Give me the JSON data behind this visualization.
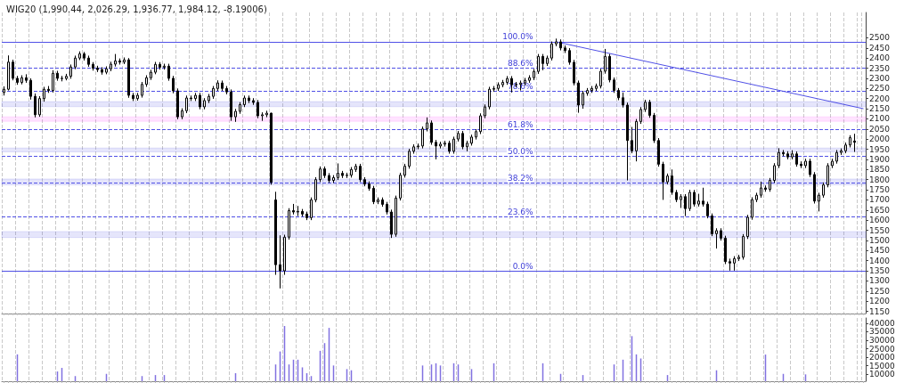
{
  "chart_data": [
    {
      "type": "candlestick",
      "title": "WIG20 (1,990.44, 2,026.29, 1,936.77, 1,984.12, -8.19006)",
      "categories": [
        null,
        null,
        null,
        null,
        null,
        null,
        null,
        null,
        null,
        null,
        null,
        null,
        null,
        null,
        null,
        null,
        null,
        null,
        null,
        null,
        null,
        null,
        null,
        null,
        null,
        null,
        null,
        null,
        null,
        null,
        null,
        null,
        null,
        null,
        null,
        null,
        null,
        null,
        null,
        null,
        null,
        null,
        null,
        null,
        null,
        null,
        null,
        null,
        null,
        null,
        null,
        null,
        null,
        null,
        null,
        null,
        null,
        null,
        null,
        null,
        null,
        null,
        null,
        null,
        null,
        null,
        null,
        null,
        null,
        null,
        null,
        null,
        null,
        null,
        null,
        null,
        null,
        null,
        null,
        null,
        null,
        null,
        null,
        null,
        null,
        null,
        null,
        null,
        null,
        null,
        null,
        null,
        null,
        null,
        null,
        null,
        null,
        null,
        null,
        null,
        null,
        null,
        null,
        null,
        null,
        null,
        null,
        null,
        null,
        null,
        null,
        null,
        null,
        null,
        null,
        null,
        null,
        null,
        null,
        null,
        null,
        null,
        null,
        null,
        null,
        null,
        null,
        null,
        null,
        null,
        null,
        null,
        null,
        null,
        null,
        null,
        null,
        null,
        null,
        null,
        null,
        null,
        null,
        null,
        null,
        null,
        null,
        null,
        null,
        null,
        null,
        null,
        null,
        null,
        null,
        null,
        null,
        null,
        null,
        null,
        null,
        null,
        null,
        null,
        null,
        null,
        null,
        null,
        null,
        null,
        null,
        null,
        null,
        null,
        null,
        null,
        null,
        null,
        null,
        null,
        null,
        null,
        null,
        null,
        null,
        null,
        null,
        null,
        null,
        null,
        null,
        null,
        null,
        null
      ],
      "ohlc": [
        [
          2230,
          2260,
          2215,
          2246
        ],
        [
          2246,
          2413,
          2240,
          2380
        ],
        [
          2380,
          2392,
          2290,
          2300
        ],
        [
          2300,
          2312,
          2268,
          2280
        ],
        [
          2280,
          2315,
          2270,
          2303
        ],
        [
          2303,
          2320,
          2278,
          2290
        ],
        [
          2290,
          2300,
          2195,
          2211
        ],
        [
          2211,
          2225,
          2107,
          2120
        ],
        [
          2120,
          2212,
          2110,
          2200
        ],
        [
          2200,
          2258,
          2185,
          2246
        ],
        [
          2246,
          2262,
          2228,
          2240
        ],
        [
          2240,
          2340,
          2230,
          2325
        ],
        [
          2325,
          2337,
          2288,
          2300
        ],
        [
          2300,
          2312,
          2285,
          2299
        ],
        [
          2299,
          2322,
          2290,
          2310
        ],
        [
          2310,
          2368,
          2298,
          2356
        ],
        [
          2356,
          2412,
          2345,
          2400
        ],
        [
          2400,
          2433,
          2390,
          2421
        ],
        [
          2421,
          2430,
          2388,
          2400
        ],
        [
          2400,
          2412,
          2357,
          2369
        ],
        [
          2369,
          2380,
          2338,
          2350
        ],
        [
          2350,
          2362,
          2331,
          2343
        ],
        [
          2343,
          2355,
          2318,
          2330
        ],
        [
          2330,
          2359,
          2320,
          2347
        ],
        [
          2347,
          2382,
          2335,
          2370
        ],
        [
          2370,
          2420,
          2358,
          2386
        ],
        [
          2386,
          2398,
          2368,
          2380
        ],
        [
          2380,
          2403,
          2370,
          2391
        ],
        [
          2391,
          2400,
          2204,
          2216
        ],
        [
          2216,
          2228,
          2188,
          2200
        ],
        [
          2200,
          2228,
          2190,
          2216
        ],
        [
          2216,
          2282,
          2205,
          2270
        ],
        [
          2270,
          2315,
          2258,
          2303
        ],
        [
          2303,
          2342,
          2292,
          2330
        ],
        [
          2330,
          2381,
          2320,
          2369
        ],
        [
          2369,
          2380,
          2343,
          2355
        ],
        [
          2355,
          2372,
          2343,
          2360
        ],
        [
          2360,
          2372,
          2288,
          2300
        ],
        [
          2300,
          2312,
          2226,
          2238
        ],
        [
          2238,
          2250,
          2098,
          2110
        ],
        [
          2110,
          2152,
          2098,
          2140
        ],
        [
          2140,
          2215,
          2128,
          2203
        ],
        [
          2203,
          2215,
          2188,
          2200
        ],
        [
          2200,
          2228,
          2188,
          2216
        ],
        [
          2216,
          2228,
          2147,
          2159
        ],
        [
          2159,
          2202,
          2147,
          2190
        ],
        [
          2190,
          2223,
          2178,
          2211
        ],
        [
          2211,
          2262,
          2199,
          2250
        ],
        [
          2250,
          2290,
          2238,
          2277
        ],
        [
          2277,
          2289,
          2238,
          2250
        ],
        [
          2250,
          2262,
          2221,
          2233
        ],
        [
          2233,
          2245,
          2090,
          2110
        ],
        [
          2110,
          2149,
          2085,
          2137
        ],
        [
          2137,
          2182,
          2125,
          2170
        ],
        [
          2170,
          2215,
          2158,
          2203
        ],
        [
          2203,
          2215,
          2178,
          2190
        ],
        [
          2190,
          2202,
          2169,
          2181
        ],
        [
          2181,
          2193,
          2103,
          2115
        ],
        [
          2115,
          2132,
          2090,
          2120
        ],
        [
          2120,
          2140,
          2108,
          2128
        ],
        [
          2128,
          2130,
          1775,
          1787
        ],
        [
          1700,
          1740,
          1330,
          1380
        ],
        [
          1380,
          1525,
          1263,
          1350
        ],
        [
          1350,
          1528,
          1330,
          1516
        ],
        [
          1516,
          1659,
          1504,
          1647
        ],
        [
          1647,
          1680,
          1628,
          1640
        ],
        [
          1640,
          1670,
          1620,
          1643
        ],
        [
          1643,
          1655,
          1618,
          1630
        ],
        [
          1630,
          1642,
          1600,
          1612
        ],
        [
          1612,
          1712,
          1600,
          1700
        ],
        [
          1700,
          1812,
          1688,
          1800
        ],
        [
          1800,
          1865,
          1788,
          1853
        ],
        [
          1853,
          1865,
          1808,
          1820
        ],
        [
          1820,
          1832,
          1784,
          1796
        ],
        [
          1796,
          1822,
          1784,
          1810
        ],
        [
          1810,
          1880,
          1798,
          1831
        ],
        [
          1831,
          1843,
          1808,
          1820
        ],
        [
          1820,
          1834,
          1808,
          1822
        ],
        [
          1822,
          1862,
          1810,
          1850
        ],
        [
          1850,
          1878,
          1838,
          1866
        ],
        [
          1866,
          1878,
          1788,
          1800
        ],
        [
          1800,
          1812,
          1767,
          1779
        ],
        [
          1779,
          1791,
          1745,
          1757
        ],
        [
          1757,
          1769,
          1679,
          1691
        ],
        [
          1691,
          1712,
          1679,
          1700
        ],
        [
          1700,
          1712,
          1666,
          1678
        ],
        [
          1678,
          1690,
          1628,
          1640
        ],
        [
          1640,
          1652,
          1512,
          1530
        ],
        [
          1530,
          1721,
          1518,
          1709
        ],
        [
          1709,
          1834,
          1697,
          1822
        ],
        [
          1822,
          1878,
          1810,
          1866
        ],
        [
          1866,
          1952,
          1854,
          1940
        ],
        [
          1940,
          1974,
          1928,
          1962
        ],
        [
          1962,
          1978,
          1950,
          1966
        ],
        [
          1966,
          2062,
          1954,
          2050
        ],
        [
          2050,
          2107,
          2038,
          2080
        ],
        [
          2080,
          2092,
          1972,
          1984
        ],
        [
          1984,
          1996,
          1900,
          1966
        ],
        [
          1966,
          1987,
          1954,
          1975
        ],
        [
          1975,
          1992,
          1963,
          1980
        ],
        [
          1980,
          1992,
          1928,
          1940
        ],
        [
          1940,
          2012,
          1928,
          2000
        ],
        [
          2000,
          2040,
          1988,
          2028
        ],
        [
          2028,
          2040,
          1950,
          1962
        ],
        [
          1962,
          1992,
          1940,
          1980
        ],
        [
          1980,
          2022,
          1968,
          2010
        ],
        [
          2010,
          2049,
          1998,
          2037
        ],
        [
          2037,
          2127,
          2025,
          2115
        ],
        [
          2115,
          2171,
          2103,
          2159
        ],
        [
          2159,
          2258,
          2147,
          2246
        ],
        [
          2246,
          2262,
          2234,
          2250
        ],
        [
          2250,
          2280,
          2238,
          2268
        ],
        [
          2268,
          2292,
          2256,
          2280
        ],
        [
          2280,
          2311,
          2268,
          2299
        ],
        [
          2299,
          2311,
          2230,
          2268
        ],
        [
          2268,
          2282,
          2256,
          2270
        ],
        [
          2270,
          2289,
          2240,
          2277
        ],
        [
          2277,
          2302,
          2265,
          2290
        ],
        [
          2290,
          2315,
          2278,
          2303
        ],
        [
          2303,
          2346,
          2291,
          2334
        ],
        [
          2334,
          2420,
          2322,
          2408
        ],
        [
          2408,
          2420,
          2340,
          2373
        ],
        [
          2373,
          2412,
          2361,
          2400
        ],
        [
          2400,
          2482,
          2388,
          2470
        ],
        [
          2470,
          2496,
          2458,
          2480
        ],
        [
          2480,
          2492,
          2438,
          2450
        ],
        [
          2450,
          2462,
          2425,
          2437
        ],
        [
          2437,
          2449,
          2367,
          2379
        ],
        [
          2379,
          2391,
          2265,
          2277
        ],
        [
          2277,
          2289,
          2130,
          2168
        ],
        [
          2168,
          2238,
          2150,
          2226
        ],
        [
          2226,
          2252,
          2214,
          2240
        ],
        [
          2240,
          2262,
          2228,
          2250
        ],
        [
          2250,
          2274,
          2238,
          2262
        ],
        [
          2262,
          2347,
          2250,
          2335
        ],
        [
          2335,
          2445,
          2323,
          2408
        ],
        [
          2408,
          2420,
          2280,
          2292
        ],
        [
          2292,
          2304,
          2228,
          2240
        ],
        [
          2240,
          2252,
          2192,
          2204
        ],
        [
          2204,
          2230,
          2156,
          2168
        ],
        [
          2168,
          2180,
          1796,
          1993
        ],
        [
          1993,
          2060,
          1930,
          1942
        ],
        [
          1942,
          2099,
          1890,
          2087
        ],
        [
          2087,
          2158,
          2075,
          2146
        ],
        [
          2146,
          2194,
          2134,
          2182
        ],
        [
          2182,
          2194,
          2105,
          2117
        ],
        [
          2117,
          2129,
          1981,
          1993
        ],
        [
          1993,
          2005,
          1864,
          1876
        ],
        [
          1876,
          1888,
          1700,
          1789
        ],
        [
          1789,
          1830,
          1777,
          1818
        ],
        [
          1818,
          1850,
          1725,
          1737
        ],
        [
          1737,
          1749,
          1689,
          1701
        ],
        [
          1701,
          1728,
          1660,
          1716
        ],
        [
          1716,
          1728,
          1620,
          1657
        ],
        [
          1657,
          1750,
          1645,
          1737
        ],
        [
          1737,
          1749,
          1667,
          1679
        ],
        [
          1679,
          1730,
          1667,
          1694
        ],
        [
          1694,
          1760,
          1667,
          1679
        ],
        [
          1679,
          1691,
          1609,
          1621
        ],
        [
          1621,
          1633,
          1521,
          1533
        ],
        [
          1533,
          1560,
          1460,
          1548
        ],
        [
          1548,
          1560,
          1499,
          1511
        ],
        [
          1511,
          1523,
          1383,
          1395
        ],
        [
          1395,
          1410,
          1351,
          1388
        ],
        [
          1388,
          1422,
          1351,
          1410
        ],
        [
          1410,
          1429,
          1398,
          1417
        ],
        [
          1417,
          1531,
          1405,
          1519
        ],
        [
          1519,
          1626,
          1507,
          1614
        ],
        [
          1614,
          1713,
          1602,
          1701
        ],
        [
          1701,
          1735,
          1689,
          1723
        ],
        [
          1723,
          1790,
          1711,
          1759
        ],
        [
          1759,
          1771,
          1740,
          1752
        ],
        [
          1752,
          1808,
          1740,
          1796
        ],
        [
          1796,
          1881,
          1784,
          1869
        ],
        [
          1869,
          1955,
          1857,
          1934
        ],
        [
          1934,
          1946,
          1915,
          1927
        ],
        [
          1927,
          1940,
          1900,
          1912
        ],
        [
          1912,
          1945,
          1900,
          1927
        ],
        [
          1927,
          1939,
          1864,
          1876
        ],
        [
          1876,
          1890,
          1857,
          1869
        ],
        [
          1869,
          1903,
          1857,
          1891
        ],
        [
          1891,
          1903,
          1813,
          1825
        ],
        [
          1825,
          1837,
          1682,
          1694
        ],
        [
          1694,
          1735,
          1643,
          1723
        ],
        [
          1723,
          1786,
          1711,
          1774
        ],
        [
          1774,
          1881,
          1762,
          1869
        ],
        [
          1869,
          1903,
          1857,
          1891
        ],
        [
          1891,
          1946,
          1879,
          1934
        ],
        [
          1934,
          1954,
          1922,
          1942
        ],
        [
          1942,
          1983,
          1930,
          1971
        ],
        [
          1971,
          2019,
          1959,
          2007
        ],
        [
          1990.44,
          2026.29,
          1936.77,
          1984.12
        ],
        null,
        null
      ],
      "series": [
        {
          "type": "line",
          "color": "#5050e6",
          "values": [
            null,
            null,
            null,
            null,
            null,
            null,
            null,
            null,
            null,
            null,
            null,
            null,
            null,
            null,
            null,
            null,
            null,
            null,
            null,
            null,
            null,
            null,
            null,
            null,
            null,
            null,
            null,
            null,
            null,
            null,
            null,
            null,
            null,
            null,
            null,
            null,
            null,
            null,
            null,
            null,
            null,
            null,
            null,
            null,
            null,
            null,
            null,
            null,
            null,
            null,
            null,
            null,
            null,
            null,
            null,
            null,
            null,
            null,
            null,
            null,
            null,
            null,
            null,
            null,
            null,
            null,
            null,
            null,
            null,
            null,
            null,
            null,
            null,
            null,
            null,
            null,
            null,
            null,
            null,
            null,
            null,
            null,
            null,
            null,
            null,
            null,
            null,
            null,
            null,
            null,
            null,
            null,
            null,
            null,
            null,
            null,
            null,
            null,
            null,
            null,
            null,
            null,
            null,
            null,
            null,
            null,
            null,
            null,
            null,
            null,
            null,
            null,
            null,
            null,
            null,
            null,
            null,
            null,
            null,
            null,
            null,
            null,
            null,
            null,
            2480,
            null,
            null,
            null,
            null,
            null,
            null,
            null,
            null,
            null,
            null,
            null,
            null,
            null,
            null,
            null,
            null,
            null,
            null,
            null,
            null,
            null,
            null,
            null,
            null,
            null,
            null,
            null,
            null,
            null,
            null,
            null,
            null,
            null,
            null,
            null,
            null,
            null,
            null,
            null,
            null,
            null,
            null,
            null,
            null,
            null,
            null,
            null,
            null,
            null,
            null,
            null,
            null,
            null,
            null,
            null,
            null,
            null,
            null,
            null,
            null,
            null,
            null,
            null,
            null,
            null,
            null,
            null,
            null,
            2150
          ]
        }
      ],
      "ylim": [
        1140,
        2625
      ],
      "yticks": [
        1150,
        1200,
        1250,
        1300,
        1350,
        1400,
        1450,
        1500,
        1550,
        1600,
        1650,
        1700,
        1750,
        1800,
        1850,
        1900,
        1950,
        2000,
        2050,
        2100,
        2150,
        2200,
        2250,
        2300,
        2350,
        2400,
        2450,
        2500
      ],
      "ref_lines": [
        {
          "axis": "y",
          "value": 2480,
          "color": "#5050e6",
          "line_style": "solid"
        },
        {
          "axis": "y",
          "value": 2352,
          "color": "#5050e6",
          "line_style": "dashed"
        },
        {
          "axis": "y",
          "value": 2238,
          "color": "#5050e6",
          "line_style": "dashed"
        },
        {
          "axis": "y",
          "value": 2048,
          "color": "#5050e6",
          "line_style": "dashed"
        },
        {
          "axis": "y",
          "value": 1915,
          "color": "#5050e6",
          "line_style": "dashed"
        },
        {
          "axis": "y",
          "value": 1782,
          "color": "#5050e6",
          "line_style": "dashed"
        },
        {
          "axis": "y",
          "value": 1617,
          "color": "#5050e6",
          "line_style": "dashed"
        },
        {
          "axis": "y",
          "value": 1350,
          "color": "#5050e6",
          "line_style": "solid"
        }
      ],
      "annotations": [
        {
          "text": "100.0%",
          "y": 2480
        },
        {
          "text": "88.6%",
          "y": 2352
        },
        {
          "text": "78.6%",
          "y": 2238
        },
        {
          "text": "61.8%",
          "y": 2048
        },
        {
          "text": "50.0%",
          "y": 1915
        },
        {
          "text": "38.2%",
          "y": 1782
        },
        {
          "text": "23.6%",
          "y": 1617
        },
        {
          "text": "0.0%",
          "y": 1350
        }
      ],
      "bands": [
        {
          "axis": "y",
          "from": 2088,
          "to": 2110,
          "color": "#ff44ff"
        },
        {
          "axis": "y",
          "from": 2160,
          "to": 2185,
          "color": "#5050e6"
        },
        {
          "axis": "y",
          "from": 1937,
          "to": 1956,
          "color": "#5050e6"
        },
        {
          "axis": "y",
          "from": 1774,
          "to": 1803,
          "color": "#5050e6"
        },
        {
          "axis": "y",
          "from": 1514,
          "to": 1544,
          "color": "#5050e6"
        }
      ],
      "grid": "x",
      "tick_labels": "y"
    },
    {
      "type": "bar",
      "color": "#8070e0",
      "categories": [
        null,
        null,
        null,
        null,
        null,
        null,
        null,
        null,
        null,
        null,
        null,
        null,
        null,
        null,
        null,
        null,
        null,
        null,
        null,
        null,
        null,
        null,
        null,
        null,
        null,
        null,
        null,
        null,
        null,
        null,
        null,
        null,
        null,
        null,
        null,
        null,
        null,
        null,
        null,
        null,
        null,
        null,
        null,
        null,
        null,
        null,
        null,
        null,
        null,
        null,
        null,
        null,
        null,
        null,
        null,
        null,
        null,
        null,
        null,
        null,
        null,
        null,
        null,
        null,
        null,
        null,
        null,
        null,
        null,
        null,
        null,
        null,
        null,
        null,
        null,
        null,
        null,
        null,
        null,
        null,
        null,
        null,
        null,
        null,
        null,
        null,
        null,
        null,
        null,
        null,
        null,
        null,
        null,
        null,
        null,
        null,
        null,
        null,
        null,
        null,
        null,
        null,
        null,
        null,
        null,
        null,
        null,
        null,
        null,
        null,
        null,
        null,
        null,
        null,
        null,
        null,
        null,
        null,
        null,
        null,
        null,
        null,
        null,
        null,
        null,
        null,
        null,
        null,
        null,
        null,
        null,
        null,
        null,
        null,
        null,
        null,
        null,
        null,
        null,
        null,
        null,
        null,
        null,
        null,
        null,
        null,
        null,
        null,
        null,
        null,
        null,
        null,
        null,
        null,
        null,
        null,
        null,
        null,
        null,
        null,
        null,
        null,
        null,
        null,
        null,
        null,
        null,
        null,
        null,
        null,
        null,
        null,
        null,
        null,
        null,
        null,
        null,
        null,
        null,
        null,
        null,
        null,
        null,
        null,
        null,
        null,
        null,
        null,
        null,
        null,
        null,
        null,
        null,
        null
      ],
      "values": [
        null,
        null,
        null,
        21700,
        null,
        null,
        null,
        null,
        null,
        null,
        null,
        null,
        11700,
        13800,
        null,
        null,
        9000,
        null,
        null,
        null,
        null,
        null,
        null,
        10300,
        null,
        null,
        null,
        null,
        null,
        null,
        null,
        9000,
        null,
        null,
        9600,
        null,
        9600,
        null,
        null,
        null,
        null,
        null,
        null,
        null,
        null,
        null,
        null,
        null,
        null,
        null,
        null,
        null,
        10700,
        null,
        null,
        null,
        null,
        null,
        null,
        null,
        null,
        15800,
        23400,
        38300,
        15800,
        18600,
        18600,
        14100,
        10700,
        9000,
        null,
        23800,
        28300,
        37200,
        15200,
        null,
        null,
        13100,
        12400,
        null,
        null,
        null,
        null,
        null,
        null,
        null,
        null,
        null,
        null,
        null,
        null,
        null,
        null,
        null,
        15200,
        null,
        15800,
        16500,
        15200,
        null,
        null,
        16500,
        15800,
        null,
        null,
        13100,
        null,
        null,
        null,
        null,
        16500,
        null,
        null,
        null,
        null,
        null,
        null,
        null,
        null,
        null,
        null,
        16500,
        null,
        null,
        null,
        10300,
        null,
        null,
        null,
        null,
        9600,
        null,
        null,
        null,
        null,
        null,
        null,
        15800,
        null,
        18600,
        null,
        32400,
        21700,
        19300,
        null,
        null,
        null,
        null,
        null,
        9600,
        null,
        null,
        null,
        null,
        null,
        null,
        null,
        null,
        null,
        null,
        12400,
        null,
        null,
        null,
        null,
        null,
        null,
        null,
        null,
        null,
        null,
        21600,
        null,
        null,
        null,
        10300,
        null,
        null,
        null,
        null,
        10000,
        null,
        null,
        null,
        null,
        null,
        null,
        null,
        null,
        null,
        null,
        null,
        null,
        null
      ],
      "ylim": [
        6000,
        43000
      ],
      "yticks": [
        10000,
        15000,
        20000,
        25000,
        30000,
        35000,
        40000
      ],
      "grid": "x",
      "tick_labels": "y"
    }
  ]
}
